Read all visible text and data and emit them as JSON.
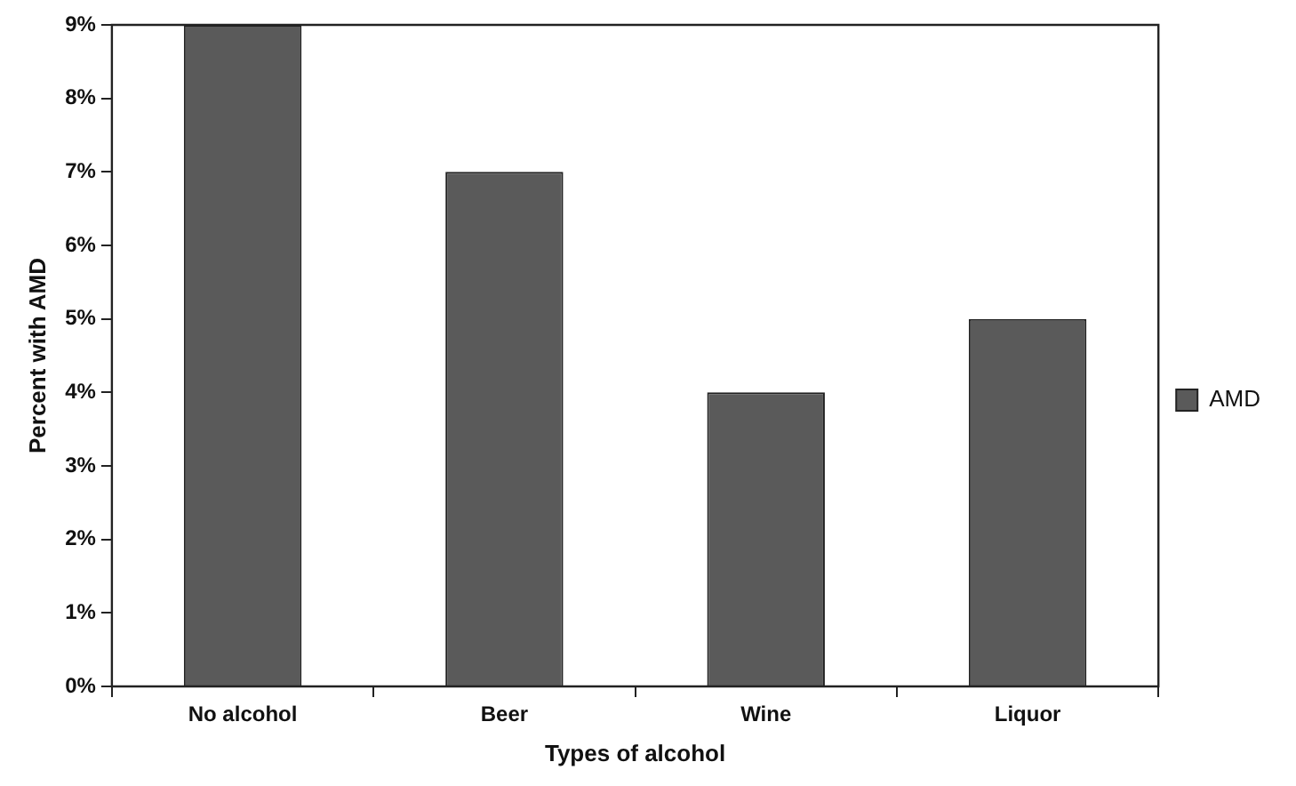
{
  "chart_data": {
    "type": "bar",
    "xlabel": "Types of alcohol",
    "ylabel": "Percent with AMD",
    "categories": [
      "No alcohol",
      "Beer",
      "Wine",
      "Liquor"
    ],
    "series": [
      {
        "name": "AMD",
        "color": "#5a5a5a",
        "values": [
          9,
          7,
          4,
          5
        ]
      }
    ],
    "ylim": [
      0,
      9
    ],
    "yticks": [
      {
        "value": 0,
        "label": "0%"
      },
      {
        "value": 1,
        "label": "1%"
      },
      {
        "value": 2,
        "label": "2%"
      },
      {
        "value": 3,
        "label": "3%"
      },
      {
        "value": 4,
        "label": "4%"
      },
      {
        "value": 5,
        "label": "5%"
      },
      {
        "value": 6,
        "label": "6%"
      },
      {
        "value": 7,
        "label": "7%"
      },
      {
        "value": 8,
        "label": "8%"
      },
      {
        "value": 9,
        "label": "9%"
      }
    ],
    "grid": false,
    "legend": "right"
  }
}
